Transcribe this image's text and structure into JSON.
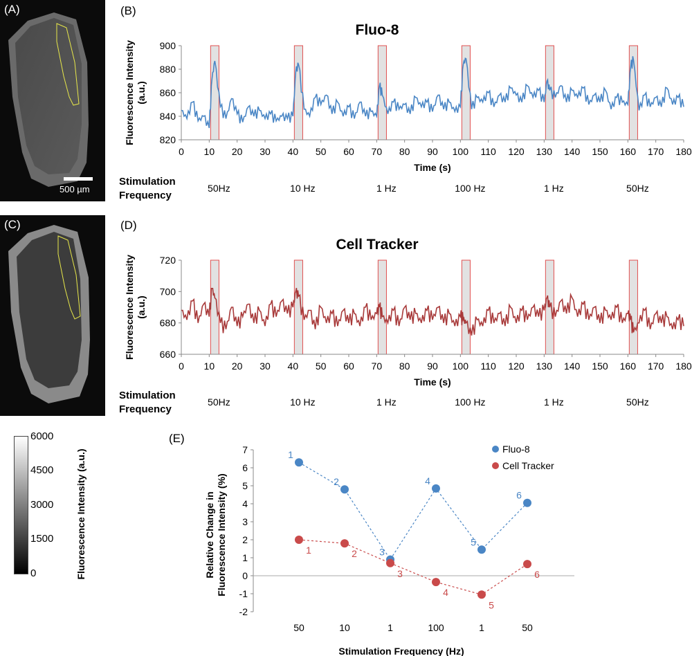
{
  "panels": {
    "a": "(A)",
    "b": "(B)",
    "c": "(C)",
    "d": "(D)",
    "e": "(E)"
  },
  "scale_bar": "500 µm",
  "colorbar": {
    "label": "Fluorescence Intensity (a.u.)",
    "ticks": [
      "6000",
      "4500",
      "3000",
      "1500",
      "0"
    ],
    "range": [
      0,
      6000
    ]
  },
  "stimulation": {
    "heading_1": "Stimulation",
    "heading_2": "Frequency",
    "labels": [
      "50Hz",
      "10 Hz",
      "1 Hz",
      "100 Hz",
      "1 Hz",
      "50Hz"
    ]
  },
  "colors": {
    "fluo": "#4a86c5",
    "tracker": "#a83a3a",
    "fluo_point": "#4a86c5",
    "tracker_point": "#c94a4a",
    "stim_fill": "#e2e2e2",
    "stim_edge": "#e05050"
  },
  "chart_data": [
    {
      "type": "line",
      "title": "Fluo-8",
      "xlabel": "Time (s)",
      "ylabel": "Fluorescence Intensity (a.u.)",
      "xlim": [
        0,
        180
      ],
      "ylim": [
        820,
        900
      ],
      "xticks": [
        0,
        10,
        20,
        30,
        40,
        50,
        60,
        70,
        80,
        90,
        100,
        110,
        120,
        130,
        140,
        150,
        160,
        170,
        180
      ],
      "yticks": [
        820,
        840,
        860,
        880,
        900
      ],
      "stim_windows": [
        [
          10.5,
          13.5
        ],
        [
          40.5,
          43.5
        ],
        [
          70.5,
          73.5
        ],
        [
          100.5,
          103.5
        ],
        [
          130.5,
          133.5
        ],
        [
          160.5,
          163.5
        ]
      ],
      "series": [
        {
          "x": [
            0,
            2,
            4,
            6,
            8,
            10,
            11,
            12,
            14,
            16,
            18,
            20,
            22,
            24,
            26,
            28,
            30,
            32,
            34,
            36,
            38,
            40,
            41,
            42,
            44,
            46,
            48,
            50,
            52,
            54,
            56,
            58,
            60,
            62,
            64,
            66,
            68,
            70,
            71,
            72,
            74,
            76,
            78,
            80,
            82,
            84,
            86,
            88,
            90,
            92,
            94,
            96,
            98,
            100,
            101,
            102,
            104,
            106,
            108,
            110,
            112,
            114,
            116,
            118,
            120,
            122,
            124,
            126,
            128,
            130,
            131,
            132,
            134,
            136,
            138,
            140,
            142,
            144,
            146,
            148,
            150,
            152,
            154,
            156,
            158,
            160,
            161,
            162,
            164,
            166,
            168,
            170,
            172,
            174,
            176,
            178,
            180
          ],
          "values": [
            845,
            838,
            852,
            836,
            840,
            830,
            872,
            887,
            848,
            838,
            855,
            842,
            835,
            848,
            840,
            845,
            838,
            842,
            836,
            840,
            838,
            840,
            878,
            884,
            846,
            840,
            856,
            850,
            858,
            842,
            852,
            840,
            848,
            838,
            852,
            840,
            844,
            840,
            866,
            858,
            842,
            852,
            846,
            850,
            842,
            856,
            848,
            852,
            844,
            858,
            846,
            852,
            844,
            848,
            884,
            889,
            846,
            856,
            852,
            860,
            848,
            858,
            852,
            864,
            858,
            852,
            866,
            856,
            862,
            852,
            870,
            862,
            856,
            866,
            852,
            862,
            856,
            864,
            850,
            858,
            852,
            862,
            846,
            856,
            852,
            850,
            882,
            888,
            845,
            858,
            848,
            856,
            848,
            864,
            850,
            856,
            848
          ]
        }
      ]
    },
    {
      "type": "line",
      "title": "Cell Tracker",
      "xlabel": "Time (s)",
      "ylabel": "Fluorescence Intensity (a.u.)",
      "xlim": [
        0,
        180
      ],
      "ylim": [
        660,
        720
      ],
      "xticks": [
        0,
        10,
        20,
        30,
        40,
        50,
        60,
        70,
        80,
        90,
        100,
        110,
        120,
        130,
        140,
        150,
        160,
        170,
        180
      ],
      "yticks": [
        660,
        680,
        700,
        720
      ],
      "stim_windows": [
        [
          10.5,
          13.5
        ],
        [
          40.5,
          43.5
        ],
        [
          70.5,
          73.5
        ],
        [
          100.5,
          103.5
        ],
        [
          130.5,
          133.5
        ],
        [
          160.5,
          163.5
        ]
      ],
      "series": [
        {
          "x": [
            0,
            2,
            4,
            6,
            8,
            10,
            11,
            12,
            14,
            16,
            18,
            20,
            22,
            24,
            26,
            28,
            30,
            32,
            34,
            36,
            38,
            40,
            41,
            42,
            44,
            46,
            48,
            50,
            52,
            54,
            56,
            58,
            60,
            62,
            64,
            66,
            68,
            70,
            71,
            72,
            74,
            76,
            78,
            80,
            82,
            84,
            86,
            88,
            90,
            92,
            94,
            96,
            98,
            100,
            101,
            102,
            104,
            106,
            108,
            110,
            112,
            114,
            116,
            118,
            120,
            122,
            124,
            126,
            128,
            130,
            131,
            132,
            134,
            136,
            138,
            140,
            142,
            144,
            146,
            148,
            150,
            152,
            154,
            156,
            158,
            160,
            161,
            162,
            164,
            166,
            168,
            170,
            172,
            174,
            176,
            178,
            180
          ],
          "values": [
            688,
            682,
            694,
            680,
            692,
            684,
            702,
            696,
            680,
            676,
            690,
            678,
            684,
            692,
            680,
            688,
            678,
            692,
            684,
            694,
            686,
            690,
            700,
            697,
            682,
            688,
            676,
            690,
            680,
            686,
            678,
            688,
            680,
            686,
            678,
            690,
            682,
            686,
            690,
            684,
            680,
            688,
            678,
            690,
            682,
            686,
            680,
            688,
            682,
            690,
            680,
            686,
            678,
            684,
            682,
            680,
            672,
            682,
            678,
            688,
            680,
            686,
            678,
            690,
            680,
            688,
            682,
            690,
            684,
            688,
            696,
            690,
            684,
            694,
            686,
            696,
            684,
            692,
            682,
            690,
            680,
            688,
            682,
            690,
            680,
            686,
            682,
            674,
            680,
            688,
            676,
            686,
            680,
            684,
            676,
            682,
            678
          ]
        }
      ]
    },
    {
      "type": "scatter",
      "xlabel": "Stimulation Frequency (Hz)",
      "ylabel": "Relative Change in Fluorescence Intensity (%)",
      "categories": [
        "50",
        "10",
        "1",
        "100",
        "1",
        "50"
      ],
      "ylim": [
        -2,
        7
      ],
      "yticks": [
        -2,
        -1,
        0,
        1,
        2,
        3,
        4,
        5,
        6,
        7
      ],
      "legend": "top-right",
      "series": [
        {
          "name": "Fluo-8",
          "values": [
            6.3,
            4.8,
            0.9,
            4.85,
            1.45,
            4.05
          ],
          "point_labels": [
            "1",
            "2",
            "3",
            "4",
            "5",
            "6"
          ]
        },
        {
          "name": "Cell Tracker",
          "values": [
            2.0,
            1.8,
            0.7,
            -0.35,
            -1.05,
            0.65
          ],
          "point_labels": [
            "1",
            "2",
            "3",
            "4",
            "5",
            "6"
          ]
        }
      ]
    }
  ]
}
